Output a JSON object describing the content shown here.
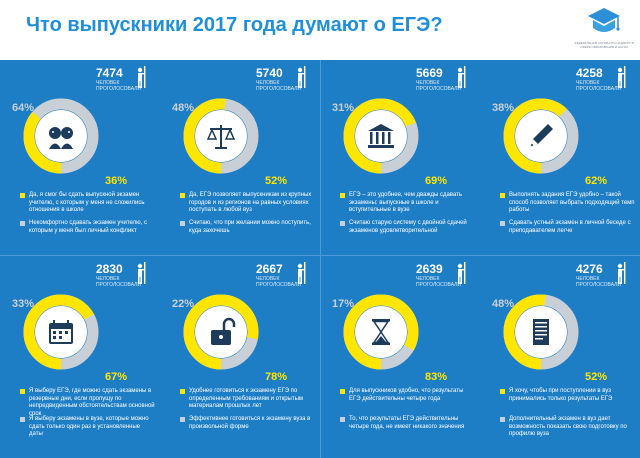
{
  "title": "Что выпускники 2017 года думают о ЕГЭ?",
  "logo": {
    "caption": "ФЕДЕРАЛЬНАЯ СЛУЖБА ПО НАДЗОРУ В СФЕРЕ ОБРАЗОВАНИЯ И НАУКИ"
  },
  "colors": {
    "panel": "#1d7ec6",
    "yellow": "#ffe600",
    "gray": "#c9cfd6",
    "title": "#1e8fd8"
  },
  "cards": [
    {
      "count": "7474",
      "count_label": "ЧЕЛОВЕК ПРОГОЛОСОВАЛИ",
      "yes": 36,
      "no": 64,
      "pct_yes": "36%",
      "pct_no": "64%",
      "icon": "people-icon",
      "yes_text": "Да, я смог бы сдать выпускной экзамен учителю, с которым у меня не сложились отношения в школе",
      "no_text": "Некомфортно сдавать экзамен учителю, с которым у меня был личный конфликт"
    },
    {
      "count": "5740",
      "count_label": "ЧЕЛОВЕК ПРОГОЛОСОВАЛИ",
      "yes": 52,
      "no": 48,
      "pct_yes": "52%",
      "pct_no": "48%",
      "icon": "scales-icon",
      "yes_text": "Да, ЕГЭ позволяет выпускникам из крупных городов и из регионов на равных условиях поступать в любой вуз",
      "no_text": "Считаю, что при желании можно поступить, куда захочешь"
    },
    {
      "count": "5669",
      "count_label": "ЧЕЛОВЕК ПРОГОЛОСОВАЛИ",
      "yes": 69,
      "no": 31,
      "pct_yes": "69%",
      "pct_no": "31%",
      "icon": "buildings-icon",
      "yes_text": "ЕГЭ – это удобнее, чем дважды сдавать экзамены: выпускные в школе и вступительные в вузе",
      "no_text": "Считаю старую систему с двойной сдачей экзаменов удовлетворительной"
    },
    {
      "count": "4258",
      "count_label": "ЧЕЛОВЕК ПРОГОЛОСОВАЛИ",
      "yes": 62,
      "no": 38,
      "pct_yes": "62%",
      "pct_no": "38%",
      "icon": "pen-icon",
      "yes_text": "Выполнять задания ЕГЭ удобно – такой способ позволяет выбрать подходящий темп работы",
      "no_text": "Сдавать устный экзамен в личной беседе с преподавателем легче"
    },
    {
      "count": "2830",
      "count_label": "ЧЕЛОВЕК ПРОГОЛОСОВАЛИ",
      "yes": 67,
      "no": 33,
      "pct_yes": "67%",
      "pct_no": "33%",
      "icon": "calendar-icon",
      "yes_text": "Я выберу ЕГЭ, где можно сдать экзамены в резервные дни, если пропущу по непредвиденным обстоятельствам основной срок",
      "no_text": "Я выберу экзамены в вузе, которые можно сдать только один раз в установленные даты"
    },
    {
      "count": "2667",
      "count_label": "ЧЕЛОВЕК ПРОГОЛОСОВАЛИ",
      "yes": 78,
      "no": 22,
      "pct_yes": "78%",
      "pct_no": "22%",
      "icon": "open-lock-icon",
      "yes_text": "Удобнее готовиться к экзамену ЕГЭ по определенным требованиям и открытым материалам прошлых лет",
      "no_text": "Эффективнее готовиться к экзамену вуза в произвольной форме"
    },
    {
      "count": "2639",
      "count_label": "ЧЕЛОВЕК ПРОГОЛОСОВАЛИ",
      "yes": 83,
      "no": 17,
      "pct_yes": "83%",
      "pct_no": "17%",
      "icon": "hourglass-icon",
      "yes_text": "Для выпускников удобно, что результаты ЕГЭ действительны четыре года",
      "no_text": "То, что результаты ЕГЭ действительны четыре года, не имеет никакого значения"
    },
    {
      "count": "4276",
      "count_label": "ЧЕЛОВЕК ПРОГОЛОСОВАЛИ",
      "yes": 52,
      "no": 48,
      "pct_yes": "52%",
      "pct_no": "48%",
      "icon": "document-icon",
      "yes_text": "Я хочу, чтобы при поступлении в вуз принимались только результаты ЕГЭ",
      "no_text": "Дополнительный экзамен в вуз дает возможность показать свою подготовку по профилю вуза"
    }
  ]
}
